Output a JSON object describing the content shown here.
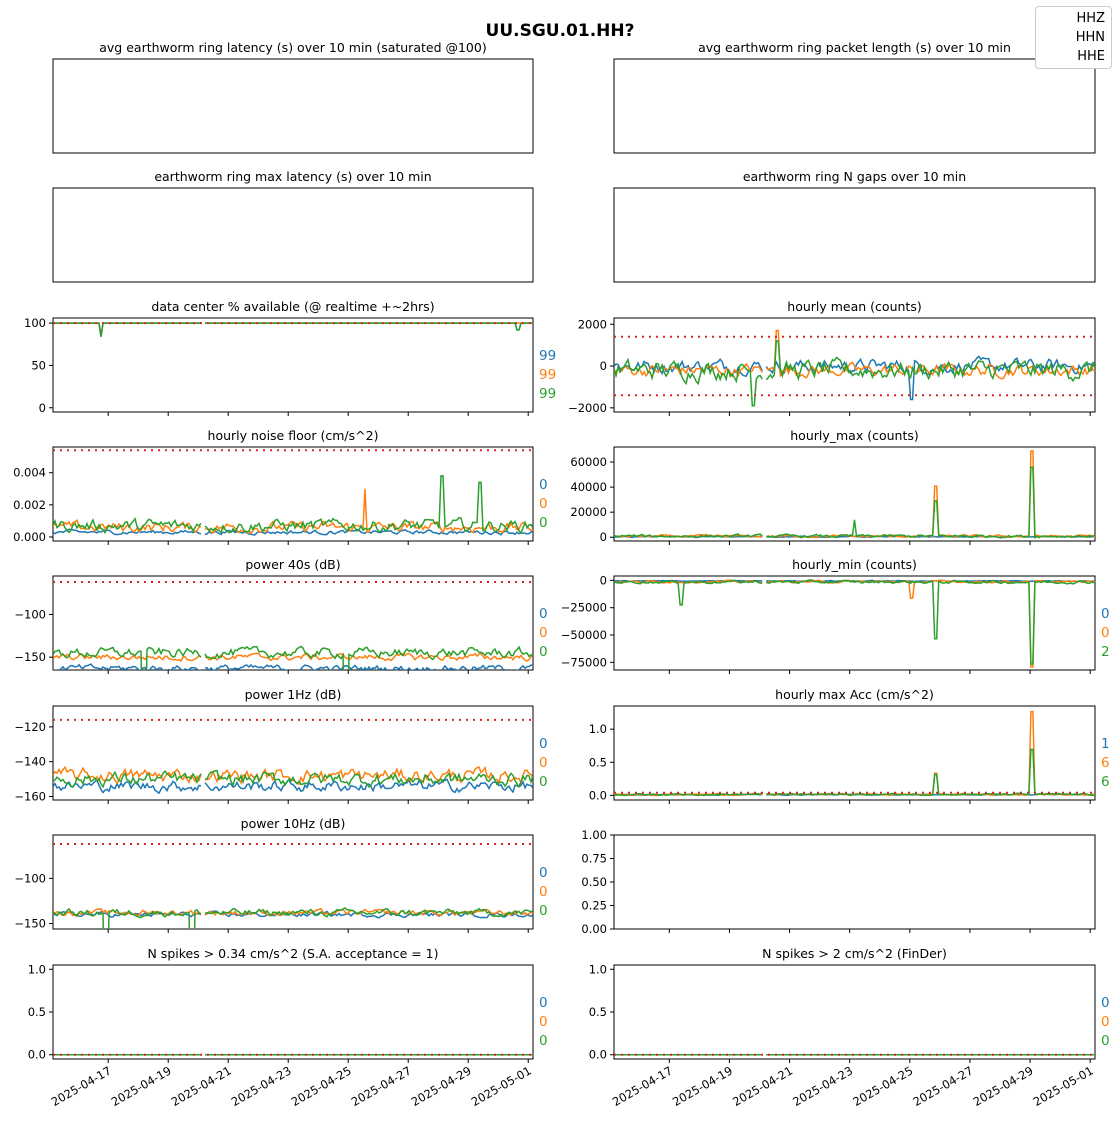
{
  "figure": {
    "title": "UU.SGU.01.HH?",
    "legend": {
      "placement": "top-right",
      "entries": [
        "HHZ",
        "HHN",
        "HHE"
      ]
    },
    "series_colors": {
      "HHZ": "#1f77b4",
      "HHN": "#ff7f0e",
      "HHE": "#2ca02c"
    },
    "threshold_color": "#d62728",
    "date_ticks": [
      "2025-04-17",
      "2025-04-19",
      "2025-04-21",
      "2025-04-23",
      "2025-04-25",
      "2025-04-27",
      "2025-04-29",
      "2025-05-01"
    ]
  },
  "chart_data": [
    {
      "id": "avg-latency",
      "type": "line",
      "title": "avg earthworm ring latency (s)   over 10 min (saturated @100)",
      "empty": true,
      "ticks": [],
      "end_labels": [],
      "series": []
    },
    {
      "id": "avg-packet-length",
      "type": "line",
      "title": "avg earthworm ring packet length (s)   over 10 min",
      "empty": true,
      "ticks": [],
      "end_labels": [],
      "series": []
    },
    {
      "id": "max-latency",
      "type": "line",
      "title": "earthworm ring max latency (s)   over 10 min",
      "empty": true,
      "ticks": [],
      "end_labels": [],
      "series": []
    },
    {
      "id": "n-gaps",
      "type": "line",
      "title": "earthworm ring N gaps   over 10 min",
      "empty": true,
      "ticks": [],
      "end_labels": [],
      "series": []
    },
    {
      "id": "data-available",
      "type": "line",
      "title": "data center % available (@ realtime +~2hrs)",
      "ylim": [
        -5,
        106
      ],
      "ticks": [
        "0",
        "50",
        "100"
      ],
      "tick_values": [
        0,
        50,
        100
      ],
      "threshold": [
        100
      ],
      "end_labels": [
        "99",
        "99",
        "99"
      ],
      "x_tick_labels": false,
      "series": [
        {
          "name": "HHZ",
          "base": 100,
          "noise": 0,
          "spikes": [
            [
              0.1,
              -16
            ],
            [
              0.97,
              -8
            ]
          ]
        },
        {
          "name": "HHN",
          "base": 100,
          "noise": 0,
          "spikes": [
            [
              0.1,
              -16
            ]
          ]
        },
        {
          "name": "HHE",
          "base": 100,
          "noise": 0,
          "spikes": [
            [
              0.1,
              -16
            ],
            [
              0.97,
              -8
            ]
          ]
        }
      ]
    },
    {
      "id": "hourly-mean",
      "type": "line",
      "title": "hourly mean (counts)",
      "ylim": [
        -2200,
        2300
      ],
      "ticks": [
        "−2000",
        "0",
        "2000"
      ],
      "tick_values": [
        -2000,
        0,
        2000
      ],
      "threshold": [
        1400,
        -1400
      ],
      "end_labels": [],
      "x_tick_labels": false,
      "series": [
        {
          "name": "HHZ",
          "base": 0,
          "noise": 500,
          "spikes": [
            [
              0.62,
              -1600
            ]
          ]
        },
        {
          "name": "HHN",
          "base": -200,
          "noise": 450,
          "spikes": [
            [
              0.34,
              1900
            ]
          ]
        },
        {
          "name": "HHE",
          "base": -200,
          "noise": 700,
          "spikes": [
            [
              0.29,
              -1700
            ],
            [
              0.34,
              1400
            ]
          ]
        }
      ]
    },
    {
      "id": "noise-floor",
      "type": "line",
      "title": "hourly noise floor (cm/s^2)",
      "ylim": [
        -0.00025,
        0.0056
      ],
      "ticks": [
        "0.000",
        "0.002",
        "0.004"
      ],
      "tick_values": [
        0,
        0.002,
        0.004
      ],
      "threshold": [
        0.0054
      ],
      "end_labels": [
        "0",
        "0",
        "0"
      ],
      "x_tick_labels": false,
      "series": [
        {
          "name": "HHZ",
          "base": 0.0003,
          "noise": 0.0002,
          "spikes": []
        },
        {
          "name": "HHN",
          "base": 0.0006,
          "noise": 0.0005,
          "spikes": [
            [
              0.65,
              0.0024
            ]
          ]
        },
        {
          "name": "HHE",
          "base": 0.0007,
          "noise": 0.0006,
          "spikes": [
            [
              0.81,
              0.0031
            ],
            [
              0.89,
              0.0027
            ]
          ]
        }
      ]
    },
    {
      "id": "hourly-max",
      "type": "line",
      "title": "hourly_max (counts)",
      "ylim": [
        -3000,
        72000
      ],
      "ticks": [
        "0",
        "20000",
        "40000",
        "60000"
      ],
      "tick_values": [
        0,
        20000,
        40000,
        60000
      ],
      "threshold": [],
      "end_labels": [],
      "x_tick_labels": false,
      "series": [
        {
          "name": "HHZ",
          "base": 400,
          "noise": 600,
          "spikes": []
        },
        {
          "name": "HHN",
          "base": 800,
          "noise": 1500,
          "spikes": [
            [
              0.67,
              40000
            ],
            [
              0.87,
              68000
            ]
          ]
        },
        {
          "name": "HHE",
          "base": 900,
          "noise": 1800,
          "spikes": [
            [
              0.67,
              28000
            ],
            [
              0.87,
              55000
            ],
            [
              0.5,
              13000
            ]
          ]
        }
      ]
    },
    {
      "id": "power-40s",
      "type": "line",
      "title": "power 40s (dB)",
      "ylim": [
        -165,
        -55
      ],
      "ticks": [
        "−150",
        "−100"
      ],
      "tick_values": [
        -150,
        -100
      ],
      "threshold": [
        -62
      ],
      "end_labels": [
        "0",
        "0",
        "0"
      ],
      "x_tick_labels": false,
      "series": [
        {
          "name": "HHZ",
          "base": -163,
          "noise": 6,
          "spikes": []
        },
        {
          "name": "HHN",
          "base": -150,
          "noise": 6,
          "spikes": []
        },
        {
          "name": "HHE",
          "base": -145,
          "noise": 9,
          "spikes": [
            [
              0.19,
              -120
            ],
            [
              0.61,
              -117
            ]
          ]
        }
      ]
    },
    {
      "id": "hourly-min",
      "type": "line",
      "title": "hourly_min (counts)",
      "ylim": [
        -82000,
        4000
      ],
      "ticks": [
        "−75000",
        "−50000",
        "−25000",
        "0"
      ],
      "tick_values": [
        -75000,
        -50000,
        -25000,
        0
      ],
      "threshold": [],
      "end_labels": [
        "0",
        "0",
        "2"
      ],
      "x_tick_labels": false,
      "series": [
        {
          "name": "HHZ",
          "base": -500,
          "noise": 600,
          "spikes": []
        },
        {
          "name": "HHN",
          "base": -1200,
          "noise": 1500,
          "spikes": [
            [
              0.62,
              -15000
            ],
            [
              0.87,
              -78000
            ]
          ]
        },
        {
          "name": "HHE",
          "base": -1500,
          "noise": 2000,
          "spikes": [
            [
              0.14,
              -21000
            ],
            [
              0.67,
              -52000
            ],
            [
              0.87,
              -75000
            ]
          ]
        }
      ]
    },
    {
      "id": "power-1hz",
      "type": "line",
      "title": "power 1Hz (dB)",
      "ylim": [
        -162,
        -108
      ],
      "ticks": [
        "−160",
        "−140",
        "−120"
      ],
      "tick_values": [
        -160,
        -140,
        -120
      ],
      "threshold": [
        -116
      ],
      "end_labels": [
        "0",
        "0",
        "0"
      ],
      "x_tick_labels": false,
      "series": [
        {
          "name": "HHZ",
          "base": -154,
          "noise": 5,
          "spikes": []
        },
        {
          "name": "HHN",
          "base": -148,
          "noise": 6,
          "spikes": []
        },
        {
          "name": "HHE",
          "base": -150,
          "noise": 6,
          "spikes": []
        }
      ]
    },
    {
      "id": "hourly-max-acc",
      "type": "line",
      "title": "hourly max Acc (cm/s^2)",
      "ylim": [
        -0.07,
        1.35
      ],
      "ticks": [
        "0.0",
        "0.5",
        "1.0"
      ],
      "tick_values": [
        0,
        0.5,
        1.0
      ],
      "threshold": [
        0.04
      ],
      "end_labels": [
        "1",
        "6",
        "6"
      ],
      "x_tick_labels": false,
      "series": [
        {
          "name": "HHZ",
          "base": 0.01,
          "noise": 0.01,
          "spikes": []
        },
        {
          "name": "HHN",
          "base": 0.015,
          "noise": 0.02,
          "spikes": [
            [
              0.67,
              0.32
            ],
            [
              0.87,
              1.25
            ]
          ]
        },
        {
          "name": "HHE",
          "base": 0.015,
          "noise": 0.02,
          "spikes": [
            [
              0.67,
              0.3
            ],
            [
              0.87,
              0.68
            ]
          ]
        }
      ]
    },
    {
      "id": "power-10hz",
      "type": "line",
      "title": "power 10Hz (dB)",
      "ylim": [
        -156,
        -52
      ],
      "ticks": [
        "−150",
        "−100"
      ],
      "tick_values": [
        -150,
        -100
      ],
      "threshold": [
        -62
      ],
      "end_labels": [
        "0",
        "0",
        "0"
      ],
      "x_tick_labels": false,
      "series": [
        {
          "name": "HHZ",
          "base": -140,
          "noise": 4,
          "spikes": []
        },
        {
          "name": "HHN",
          "base": -138,
          "noise": 5,
          "spikes": []
        },
        {
          "name": "HHE",
          "base": -138,
          "noise": 6,
          "spikes": [
            [
              0.11,
              -118
            ],
            [
              0.29,
              -117
            ]
          ]
        }
      ]
    },
    {
      "id": "blank-axes",
      "type": "line",
      "title": "",
      "ylim": [
        0,
        1
      ],
      "ticks": [
        "0.00",
        "0.25",
        "0.50",
        "0.75",
        "1.00"
      ],
      "tick_values": [
        0,
        0.25,
        0.5,
        0.75,
        1.0
      ],
      "threshold": [],
      "end_labels": [],
      "x_tick_labels": false,
      "series": []
    },
    {
      "id": "n-spikes-034",
      "type": "line",
      "title": "N spikes > 0.34 cm/s^2 (S.A. acceptance = 1)",
      "ylim": [
        -0.05,
        1.05
      ],
      "ticks": [
        "0.0",
        "0.5",
        "1.0"
      ],
      "tick_values": [
        0,
        0.5,
        1.0
      ],
      "threshold": [
        0
      ],
      "end_labels": [
        "0",
        "0",
        "0"
      ],
      "x_tick_labels": true,
      "series": [
        {
          "name": "HHZ",
          "base": 0,
          "noise": 0,
          "spikes": []
        },
        {
          "name": "HHN",
          "base": 0,
          "noise": 0,
          "spikes": []
        },
        {
          "name": "HHE",
          "base": 0,
          "noise": 0,
          "spikes": []
        }
      ]
    },
    {
      "id": "n-spikes-2",
      "type": "line",
      "title": "N spikes > 2 cm/s^2 (FinDer)",
      "ylim": [
        -0.05,
        1.05
      ],
      "ticks": [
        "0.0",
        "0.5",
        "1.0"
      ],
      "tick_values": [
        0,
        0.5,
        1.0
      ],
      "threshold": [
        0
      ],
      "end_labels": [
        "0",
        "0",
        "0"
      ],
      "x_tick_labels": true,
      "series": [
        {
          "name": "HHZ",
          "base": 0,
          "noise": 0,
          "spikes": []
        },
        {
          "name": "HHN",
          "base": 0,
          "noise": 0,
          "spikes": []
        },
        {
          "name": "HHE",
          "base": 0,
          "noise": 0,
          "spikes": []
        }
      ]
    }
  ]
}
